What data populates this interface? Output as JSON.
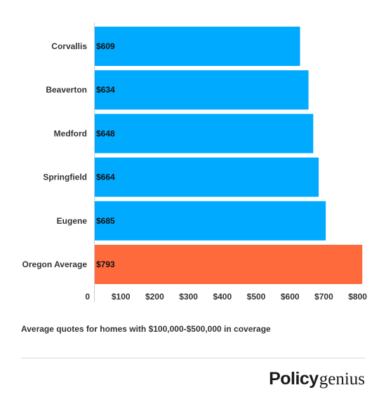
{
  "chart_data": {
    "type": "bar",
    "orientation": "horizontal",
    "categories": [
      "Corvallis",
      "Beaverton",
      "Medford",
      "Springfield",
      "Eugene",
      "Oregon Average"
    ],
    "values": [
      609,
      634,
      648,
      664,
      685,
      793
    ],
    "data_labels": [
      "$609",
      "$634",
      "$648",
      "$664",
      "$685",
      "$793"
    ],
    "bar_colors": [
      "#00aaff",
      "#00aaff",
      "#00aaff",
      "#00aaff",
      "#00aaff",
      "#ff6a3d"
    ],
    "x_ticks": [
      0,
      100,
      200,
      300,
      400,
      500,
      600,
      700,
      800
    ],
    "x_tick_labels": [
      "0",
      "$100",
      "$200",
      "$300",
      "$400",
      "$500",
      "$600",
      "$700",
      "$800"
    ],
    "xlim": [
      0,
      800
    ],
    "grid": false,
    "legend": "none"
  },
  "caption": "Average quotes for homes with $100,000-$500,000 in coverage",
  "brand": {
    "part1": "Policy",
    "part2": "genius"
  }
}
